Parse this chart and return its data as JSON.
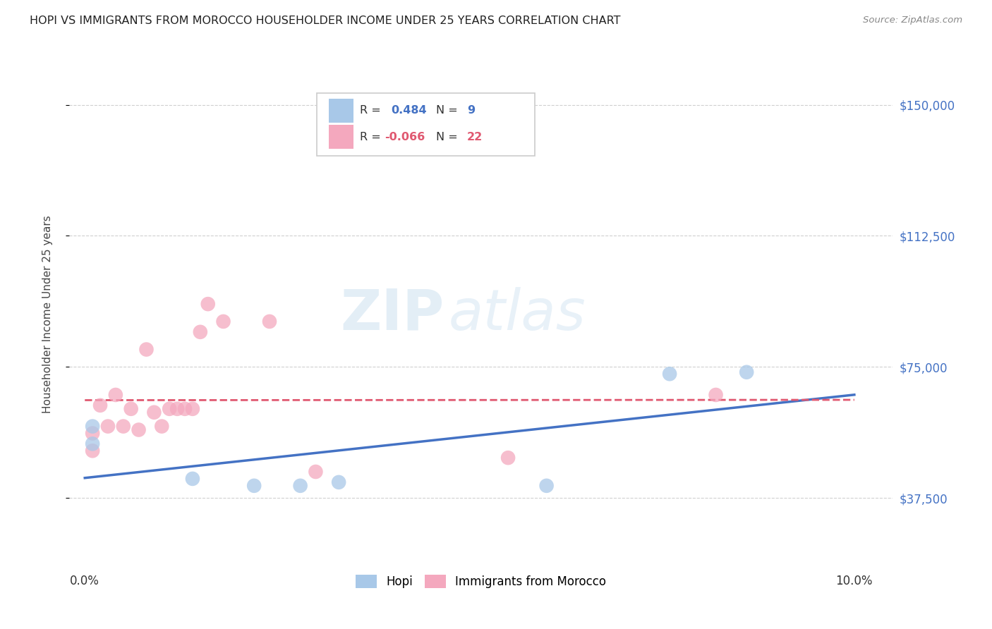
{
  "title": "HOPI VS IMMIGRANTS FROM MOROCCO HOUSEHOLDER INCOME UNDER 25 YEARS CORRELATION CHART",
  "source": "Source: ZipAtlas.com",
  "ylabel": "Householder Income Under 25 years",
  "xlabel_ticks": [
    "0.0%",
    "",
    "",
    "",
    "",
    "",
    "",
    "",
    "",
    "",
    "10.0%"
  ],
  "xlabel_vals": [
    0.0,
    0.01,
    0.02,
    0.03,
    0.04,
    0.05,
    0.06,
    0.07,
    0.08,
    0.09,
    0.1
  ],
  "ylabel_ticks": [
    "$37,500",
    "$75,000",
    "$112,500",
    "$150,000"
  ],
  "ylabel_vals": [
    37500,
    75000,
    112500,
    150000
  ],
  "xlim": [
    -0.002,
    0.105
  ],
  "ylim": [
    18000,
    162000
  ],
  "hopi_color": "#a8c8e8",
  "morocco_color": "#f4a8be",
  "hopi_line_color": "#4472c4",
  "morocco_line_color": "#e05870",
  "hopi_R": 0.484,
  "hopi_N": 9,
  "morocco_R": -0.066,
  "morocco_N": 22,
  "hopi_points": [
    [
      0.001,
      58000
    ],
    [
      0.001,
      53000
    ],
    [
      0.014,
      43000
    ],
    [
      0.022,
      41000
    ],
    [
      0.028,
      41000
    ],
    [
      0.033,
      42000
    ],
    [
      0.06,
      41000
    ],
    [
      0.076,
      73000
    ],
    [
      0.086,
      73500
    ]
  ],
  "morocco_points": [
    [
      0.001,
      56000
    ],
    [
      0.001,
      51000
    ],
    [
      0.002,
      64000
    ],
    [
      0.003,
      58000
    ],
    [
      0.004,
      67000
    ],
    [
      0.005,
      58000
    ],
    [
      0.006,
      63000
    ],
    [
      0.007,
      57000
    ],
    [
      0.008,
      80000
    ],
    [
      0.009,
      62000
    ],
    [
      0.01,
      58000
    ],
    [
      0.011,
      63000
    ],
    [
      0.012,
      63000
    ],
    [
      0.013,
      63000
    ],
    [
      0.014,
      63000
    ],
    [
      0.015,
      85000
    ],
    [
      0.016,
      93000
    ],
    [
      0.018,
      88000
    ],
    [
      0.024,
      88000
    ],
    [
      0.03,
      45000
    ],
    [
      0.055,
      49000
    ],
    [
      0.082,
      67000
    ]
  ],
  "watermark_zip": "ZIP",
  "watermark_atlas": "atlas",
  "background_color": "#ffffff",
  "grid_color": "#d0d0d0"
}
